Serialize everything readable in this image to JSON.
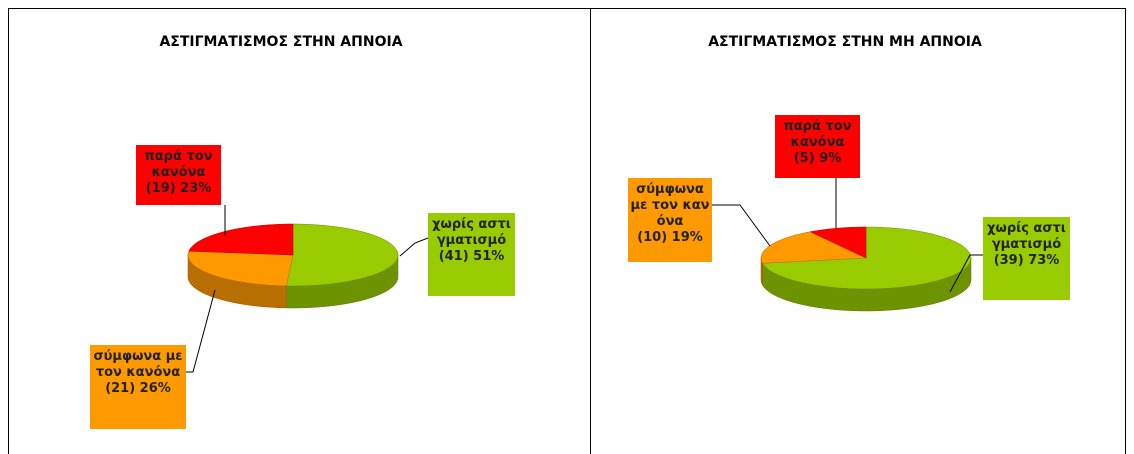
{
  "chart_data": [
    {
      "type": "pie3d",
      "title": "ΑΣΤΙΓΜΑΤΙΣΜΟΣ ΣΤΗΝ ΑΠΝΟΙΑ",
      "categories": [
        "χωρίς αστιγματισμό",
        "σύμφωνα με τον κανόνα",
        "παρά τον κανόνα"
      ],
      "values": [
        51,
        26,
        23
      ],
      "value_labels": [
        "(41) 51%",
        "(21) 26%",
        "(19) 23%"
      ],
      "colors": [
        "#99cc00",
        "#ff9900",
        "#ff0000"
      ]
    },
    {
      "type": "pie3d",
      "title": "ΑΣΤΙΓΜΑΤΙΣΜΟΣ ΣΤΗΝ ΜΗ ΑΠΝΟΙΑ",
      "categories": [
        "χωρίς αστιγματισμό",
        "σύμφωνα με τον κανόνα",
        "παρά τον κανόνα"
      ],
      "values": [
        73,
        19,
        9
      ],
      "value_labels": [
        "(39) 73%",
        "(10) 19%",
        "(5) 9%"
      ],
      "colors": [
        "#99cc00",
        "#ff9900",
        "#ff0000"
      ]
    }
  ]
}
